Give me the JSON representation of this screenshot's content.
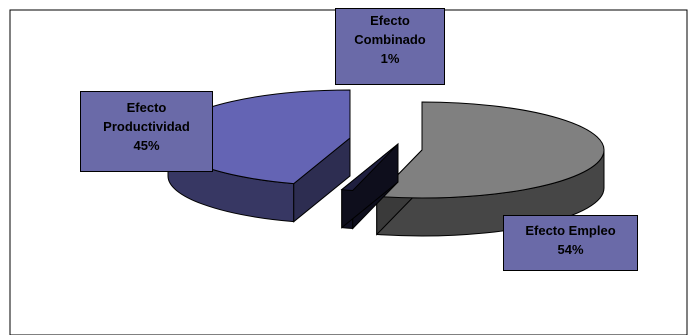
{
  "chart_data": {
    "type": "pie",
    "style": "3d-exploded",
    "slices": [
      {
        "label": "Efecto Empleo",
        "value": 54,
        "display": "54%",
        "color": "#808080"
      },
      {
        "label": "Efecto Combinado",
        "value": 1,
        "display": "1%",
        "color": "#1f1f3f"
      },
      {
        "label": "Efecto Productividad",
        "value": 45,
        "display": "45%",
        "color": "#6464b4"
      }
    ],
    "label_box_color": "#6a6aa8",
    "legend": "none"
  }
}
